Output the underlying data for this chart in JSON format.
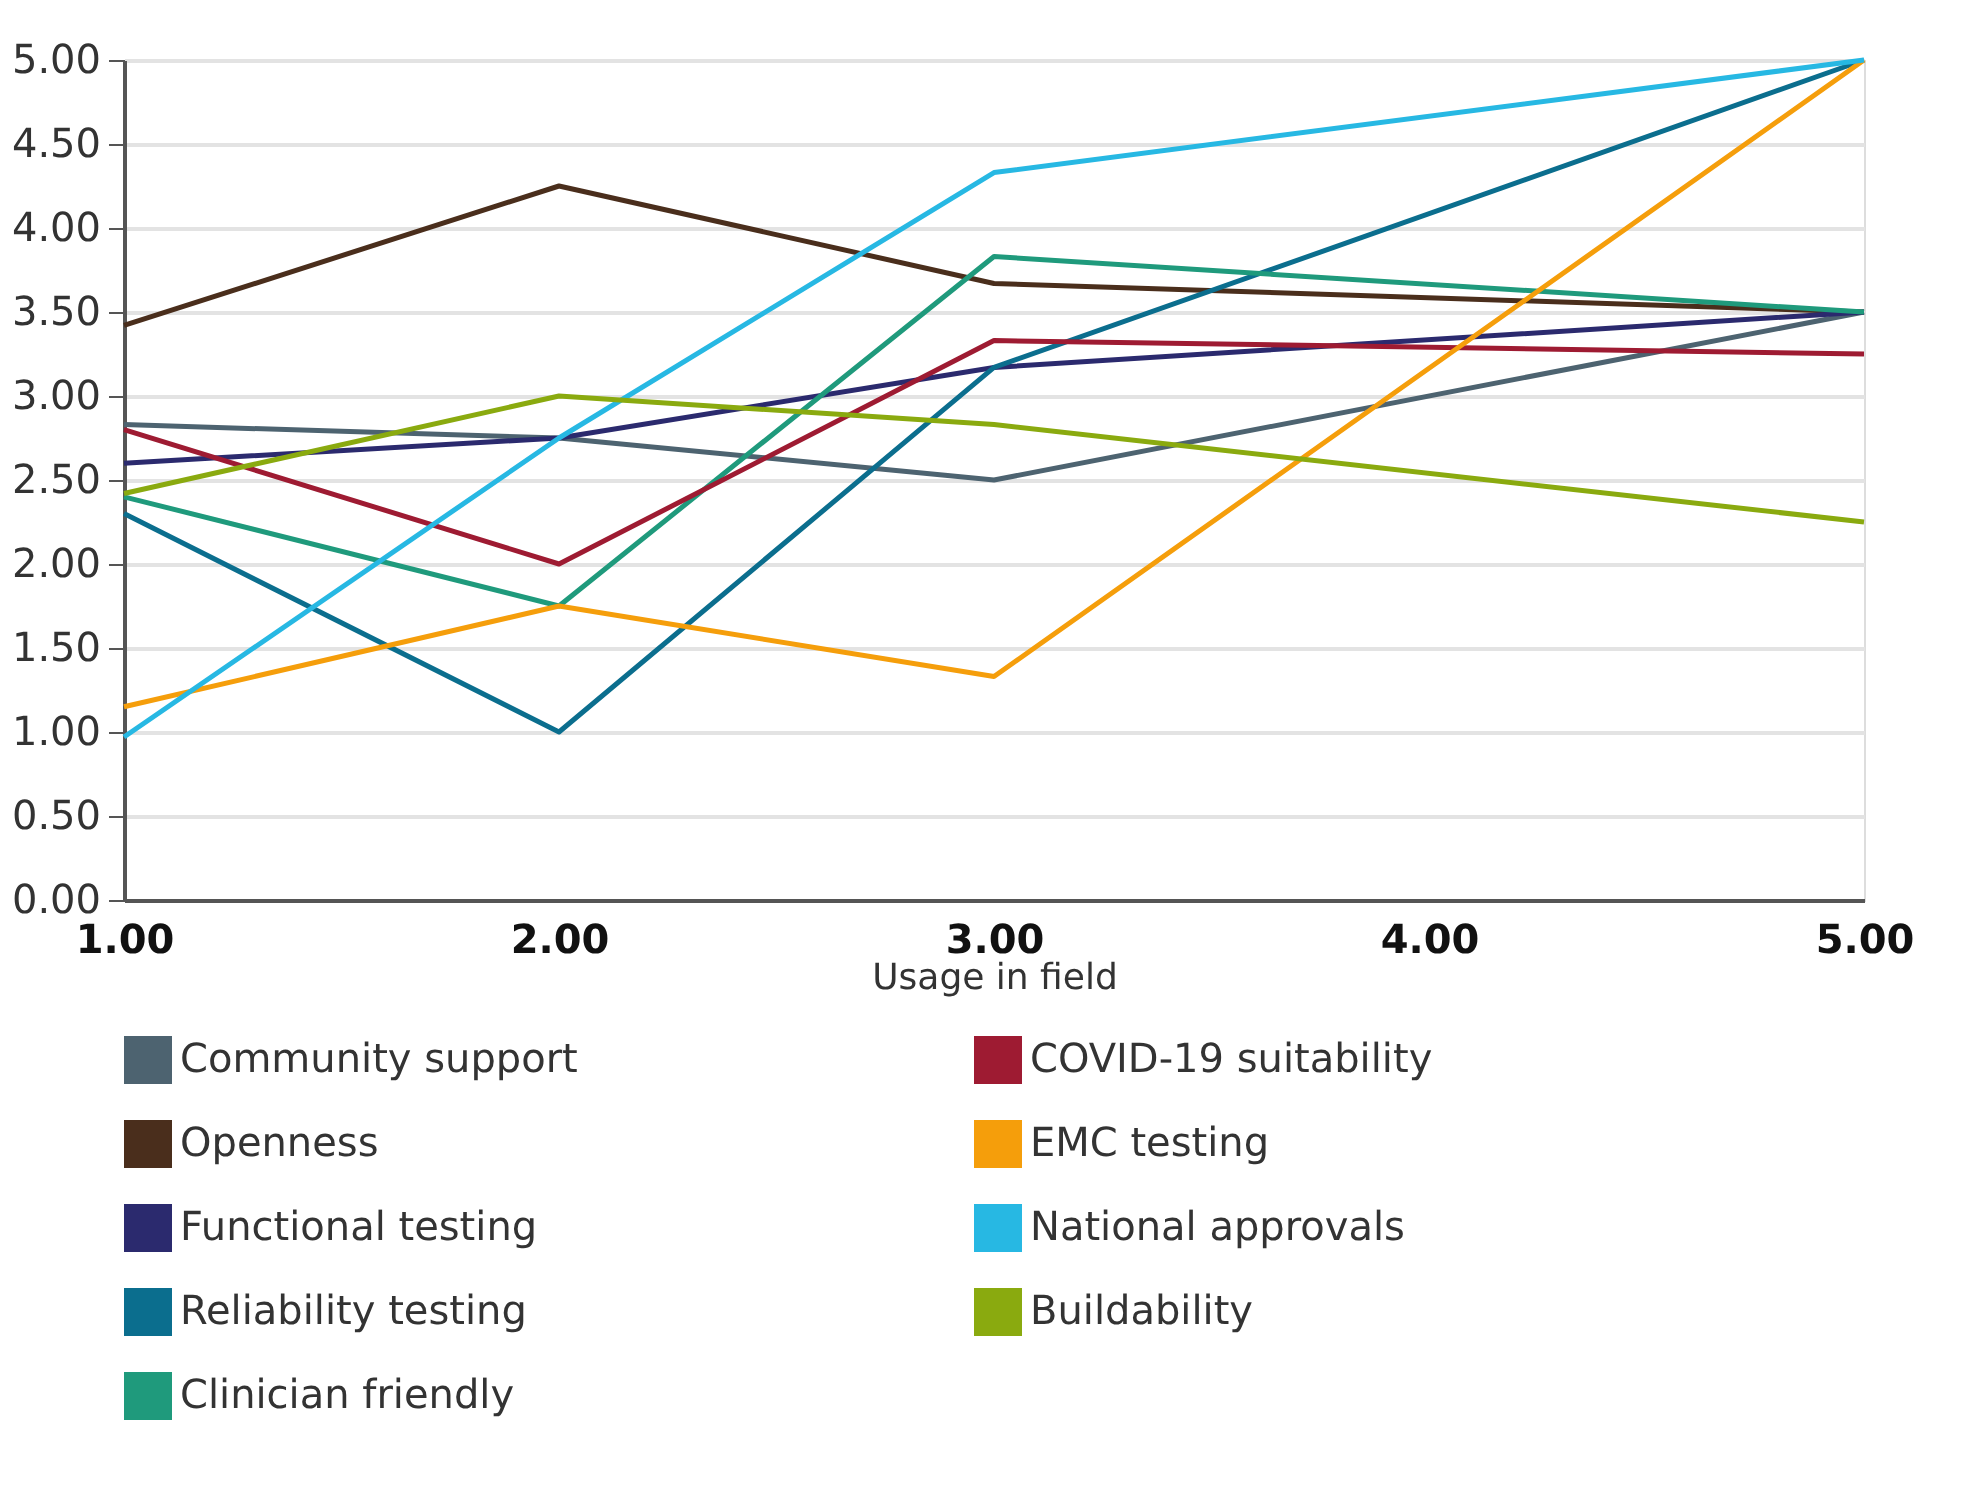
{
  "chart_data": {
    "type": "line",
    "xlabel": "Usage in field",
    "x": [
      1,
      2,
      3,
      5
    ],
    "xlim": [
      1,
      5
    ],
    "xticks": [
      {
        "value": 1,
        "label": "1.00"
      },
      {
        "value": 2,
        "label": "2.00"
      },
      {
        "value": 3,
        "label": "3.00"
      },
      {
        "value": 4,
        "label": "4.00"
      },
      {
        "value": 5,
        "label": "5.00"
      }
    ],
    "ylim": [
      0,
      5
    ],
    "yticks": [
      {
        "value": 0,
        "label": "0.00"
      },
      {
        "value": 0.5,
        "label": "0.50"
      },
      {
        "value": 1,
        "label": "1.00"
      },
      {
        "value": 1.5,
        "label": "1.50"
      },
      {
        "value": 2,
        "label": "2.00"
      },
      {
        "value": 2.5,
        "label": "2.50"
      },
      {
        "value": 3,
        "label": "3.00"
      },
      {
        "value": 3.5,
        "label": "3.50"
      },
      {
        "value": 4,
        "label": "4.00"
      },
      {
        "value": 4.5,
        "label": "4.50"
      },
      {
        "value": 5,
        "label": "5.00"
      }
    ],
    "grid": "y",
    "legend": "bottom",
    "marker": "none",
    "line_style": "solid",
    "series": [
      {
        "name": "Community support",
        "color": "#4d6370",
        "values": [
          2.83,
          2.75,
          2.5,
          3.5
        ]
      },
      {
        "name": "Openness",
        "color": "#4a2e1c",
        "values": [
          3.42,
          4.25,
          3.67,
          3.5
        ]
      },
      {
        "name": "Functional testing",
        "color": "#2b2a6e",
        "values": [
          2.6,
          2.75,
          3.17,
          3.5
        ]
      },
      {
        "name": "Reliability testing",
        "color": "#0b6e8e",
        "values": [
          2.3,
          1.0,
          3.17,
          5.0
        ]
      },
      {
        "name": "Clinician friendly",
        "color": "#1f9a7c",
        "values": [
          2.4,
          1.75,
          3.83,
          3.5
        ]
      },
      {
        "name": "COVID-19 suitability",
        "color": "#9e1b32",
        "values": [
          2.8,
          2.0,
          3.33,
          3.25
        ]
      },
      {
        "name": "EMC testing",
        "color": "#f59e0b",
        "values": [
          1.15,
          1.75,
          1.33,
          5.0
        ]
      },
      {
        "name": "National approvals",
        "color": "#27b8e3",
        "values": [
          0.97,
          2.75,
          4.33,
          5.0
        ]
      },
      {
        "name": "Buildability",
        "color": "#8aaa0f",
        "values": [
          2.42,
          3.0,
          2.83,
          2.25
        ]
      }
    ]
  }
}
